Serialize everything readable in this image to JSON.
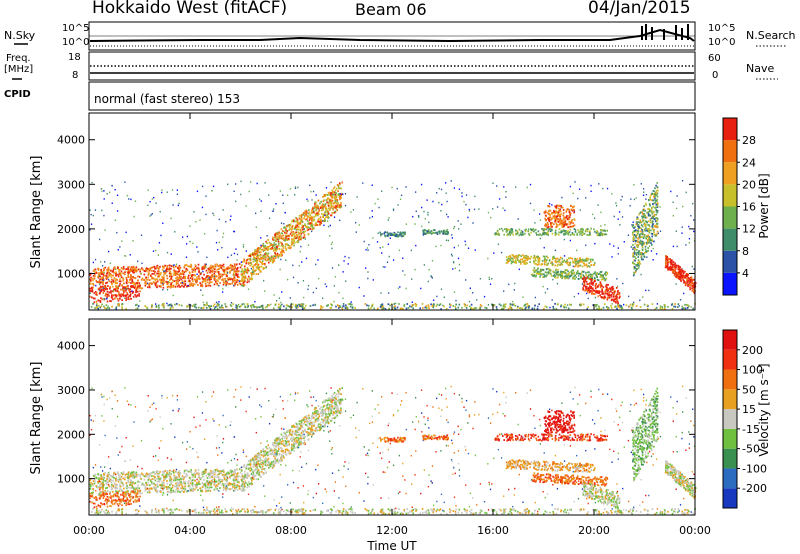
{
  "header": {
    "station": "Hokkaido West (fitACF)",
    "beam": "Beam 06",
    "date": "04/Jan/2015"
  },
  "strip_panels": {
    "nsky_label": "N.Sky",
    "nsearch_label": "N.Search",
    "noise_ticks": [
      "10^5",
      "10^0"
    ],
    "freq_label_line1": "Freq.",
    "freq_label_line2": "[MHz]",
    "freq_ticks": [
      "18",
      "8"
    ],
    "nave_label": "Nave",
    "nave_ticks": [
      "60",
      "0"
    ],
    "cpid_label": "CPID",
    "cpid_text": "normal (fast stereo) 153"
  },
  "chart_data": [
    {
      "type": "heatmap",
      "name": "power",
      "ylabel": "Slant Range [km]",
      "xlabel": "",
      "ylim": [
        180,
        4600
      ],
      "yticks": [
        "1000",
        "2000",
        "3000",
        "4000"
      ],
      "colorbar": {
        "label": "Power [dB]",
        "ticks": [
          "4",
          "8",
          "12",
          "16",
          "20",
          "24",
          "28"
        ],
        "colors": [
          "#0a14ff",
          "#2c52a8",
          "#3f8c6a",
          "#6fb04e",
          "#c8c02a",
          "#f0a020",
          "#f07010",
          "#e82010"
        ]
      }
    },
    {
      "type": "heatmap",
      "name": "velocity",
      "ylabel": "Slant Range [km]",
      "xlabel": "Time UT",
      "ylim": [
        180,
        4600
      ],
      "yticks": [
        "1000",
        "2000",
        "3000",
        "4000"
      ],
      "xticks": [
        "00:00",
        "04:00",
        "08:00",
        "12:00",
        "16:00",
        "20:00",
        "00:00"
      ],
      "colorbar": {
        "label": "Velocity [m s⁻¹]",
        "ticks": [
          "200",
          "100",
          "50",
          "15",
          "-15",
          "-50",
          "-100",
          "-200"
        ],
        "colors": [
          "#1838c0",
          "#2c6cc0",
          "#3a9050",
          "#70c040",
          "#c8c8c0",
          "#e8a020",
          "#f07010",
          "#f03010",
          "#e01010"
        ]
      }
    }
  ]
}
